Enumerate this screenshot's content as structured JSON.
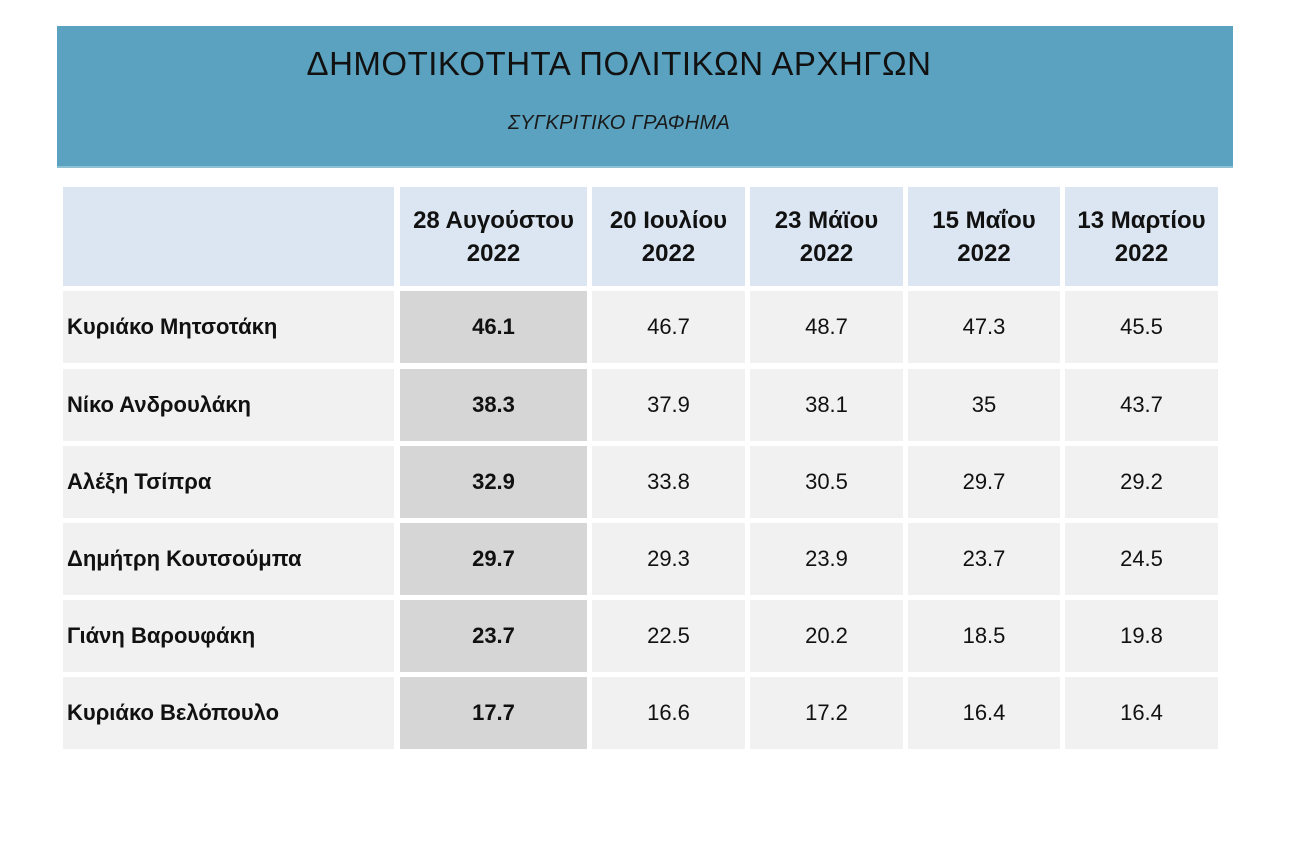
{
  "header": {
    "title": "ΔΗΜΟΤΙΚΟΤΗΤΑ ΠΟΛΙΤΙΚΩΝ ΑΡΧΗΓΩΝ",
    "subtitle": "ΣΥΓΚΡΙΤΙΚΟ ΓΡΑΦΗΜΑ"
  },
  "chart_data": {
    "type": "table",
    "title": "ΔΗΜΟΤΙΚΟΤΗΤΑ ΠΟΛΙΤΙΚΩΝ ΑΡΧΗΓΩΝ",
    "subtitle": "ΣΥΓΚΡΙΤΙΚΟ ΓΡΑΦΗΜΑ",
    "columns": [
      {
        "line1": "28 Αυγούστου",
        "line2": "2022"
      },
      {
        "line1": "20 Ιουλίου",
        "line2": "2022"
      },
      {
        "line1": "23 Μάϊου",
        "line2": "2022"
      },
      {
        "line1": "15 Μαΐου",
        "line2": "2022"
      },
      {
        "line1": "13 Μαρτίου",
        "line2": "2022"
      }
    ],
    "rows": [
      {
        "name": "Κυριάκο Μητσοτάκη",
        "values": [
          "46.1",
          "46.7",
          "48.7",
          "47.3",
          "45.5"
        ]
      },
      {
        "name": "Νίκο Ανδρουλάκη",
        "values": [
          "38.3",
          "37.9",
          "38.1",
          "35",
          "43.7"
        ]
      },
      {
        "name": "Αλέξη Τσίπρα",
        "values": [
          "32.9",
          "33.8",
          "30.5",
          "29.7",
          "29.2"
        ]
      },
      {
        "name": "Δημήτρη Κουτσούμπα",
        "values": [
          "29.7",
          "29.3",
          "23.9",
          "23.7",
          "24.5"
        ]
      },
      {
        "name": "Γιάνη Βαρουφάκη",
        "values": [
          "23.7",
          "22.5",
          "20.2",
          "18.5",
          "19.8"
        ]
      },
      {
        "name": "Κυριάκο Βελόπουλο",
        "values": [
          "17.7",
          "16.6",
          "17.2",
          "16.4",
          "16.4"
        ]
      }
    ],
    "highlighted_column": 0
  }
}
